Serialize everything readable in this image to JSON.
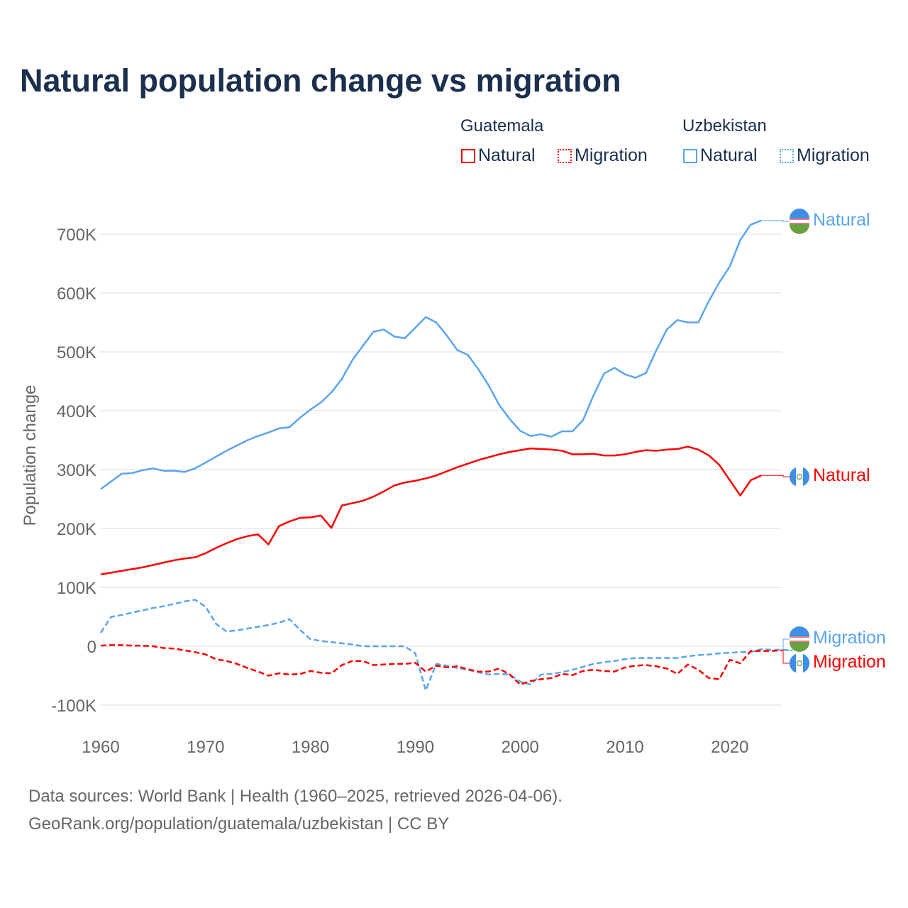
{
  "title": "Natural population change vs migration",
  "legend": {
    "groups": [
      {
        "name": "Guatemala",
        "items": [
          "Natural",
          "Migration"
        ],
        "color": "#ff0000"
      },
      {
        "name": "Uzbekistan",
        "items": [
          "Natural",
          "Migration"
        ],
        "color": "#5aa5ec"
      }
    ]
  },
  "footer": {
    "line1": "Data sources: World Bank | Health (1960–2025, retrieved 2026-04-06).",
    "line2": "GeoRank.org/population/guatemala/uzbekistan | CC BY"
  },
  "chart_data": {
    "type": "line",
    "title": "Natural population change vs migration",
    "xlabel": "",
    "ylabel": "Population change",
    "xlim": [
      1960,
      2025
    ],
    "ylim": [
      -110000,
      740000
    ],
    "x_ticks": [
      "1960",
      "1970",
      "1980",
      "1990",
      "2000",
      "2010",
      "2020"
    ],
    "y_ticks": [
      {
        "v": -100000,
        "label": "-100K"
      },
      {
        "v": 0,
        "label": "0"
      },
      {
        "v": 100000,
        "label": "100K"
      },
      {
        "v": 200000,
        "label": "200K"
      },
      {
        "v": 300000,
        "label": "300K"
      },
      {
        "v": 400000,
        "label": "400K"
      },
      {
        "v": 500000,
        "label": "500K"
      },
      {
        "v": 600000,
        "label": "600K"
      },
      {
        "v": 700000,
        "label": "700K"
      }
    ],
    "grid": true,
    "legend_position": "top-right",
    "start_year": 1960,
    "series": [
      {
        "name": "Uzbekistan Natural",
        "country": "Uzbekistan",
        "end_label": "Natural",
        "color": "#5aa5ec",
        "dash": "solid",
        "values_k": [
          267,
          280,
          293,
          294,
          299,
          302,
          298,
          298,
          296,
          302,
          312,
          322,
          332,
          341,
          350,
          357,
          363,
          370,
          372,
          388,
          402,
          414,
          431,
          454,
          486,
          510,
          534,
          538,
          526,
          523,
          541,
          559,
          550,
          528,
          503,
          495,
          471,
          443,
          410,
          386,
          366,
          357,
          360,
          356,
          365,
          365,
          384,
          426,
          463,
          473,
          462,
          456,
          464,
          503,
          538,
          554,
          550,
          550,
          586,
          618,
          645,
          690,
          716,
          723
        ]
      },
      {
        "name": "Guatemala Natural",
        "country": "Guatemala",
        "end_label": "Natural",
        "color": "#ff0000",
        "dash": "solid",
        "values_k": [
          122,
          125,
          128,
          131,
          134,
          138,
          142,
          146,
          149,
          151,
          158,
          167,
          175,
          182,
          187,
          190,
          173,
          204,
          212,
          218,
          219,
          222,
          201,
          239,
          243,
          247,
          254,
          263,
          273,
          278,
          281,
          285,
          290,
          297,
          304,
          310,
          316,
          321,
          326,
          330,
          333,
          336,
          335,
          334,
          332,
          326,
          326,
          327,
          324,
          324,
          326,
          330,
          333,
          332,
          334,
          335,
          339,
          334,
          324,
          308,
          282,
          256,
          282,
          290
        ]
      },
      {
        "name": "Uzbekistan Migration",
        "country": "Uzbekistan",
        "end_label": "Migration",
        "color": "#5aa5ec",
        "dash": "dashed",
        "values_k": [
          23,
          50,
          53,
          57,
          61,
          65,
          68,
          72,
          76,
          79,
          67,
          38,
          25,
          27,
          30,
          33,
          36,
          40,
          46,
          28,
          12,
          9,
          7,
          5,
          3,
          0,
          0,
          0,
          0,
          0,
          -12,
          -75,
          -30,
          -33,
          -37,
          -40,
          -44,
          -48,
          -47,
          -48,
          -60,
          -65,
          -48,
          -47,
          -44,
          -40,
          -35,
          -30,
          -27,
          -25,
          -22,
          -20,
          -20,
          -20,
          -20,
          -20,
          -17,
          -15,
          -14,
          -12,
          -11,
          -10,
          -10,
          -5,
          -6,
          -6,
          -7
        ]
      },
      {
        "name": "Guatemala Migration",
        "country": "Guatemala",
        "end_label": "Migration",
        "color": "#ff0000",
        "dash": "dashed",
        "values_k": [
          1,
          2,
          2,
          1,
          1,
          0,
          -3,
          -4,
          -7,
          -10,
          -14,
          -22,
          -25,
          -30,
          -37,
          -43,
          -50,
          -46,
          -48,
          -47,
          -42,
          -45,
          -46,
          -32,
          -25,
          -25,
          -32,
          -31,
          -30,
          -30,
          -28,
          -43,
          -33,
          -36,
          -34,
          -39,
          -43,
          -43,
          -38,
          -48,
          -65,
          -59,
          -56,
          -54,
          -47,
          -49,
          -42,
          -40,
          -42,
          -43,
          -36,
          -33,
          -32,
          -34,
          -38,
          -47,
          -31,
          -40,
          -54,
          -56,
          -23,
          -29,
          -8,
          -8,
          -8,
          -7
        ]
      }
    ]
  }
}
